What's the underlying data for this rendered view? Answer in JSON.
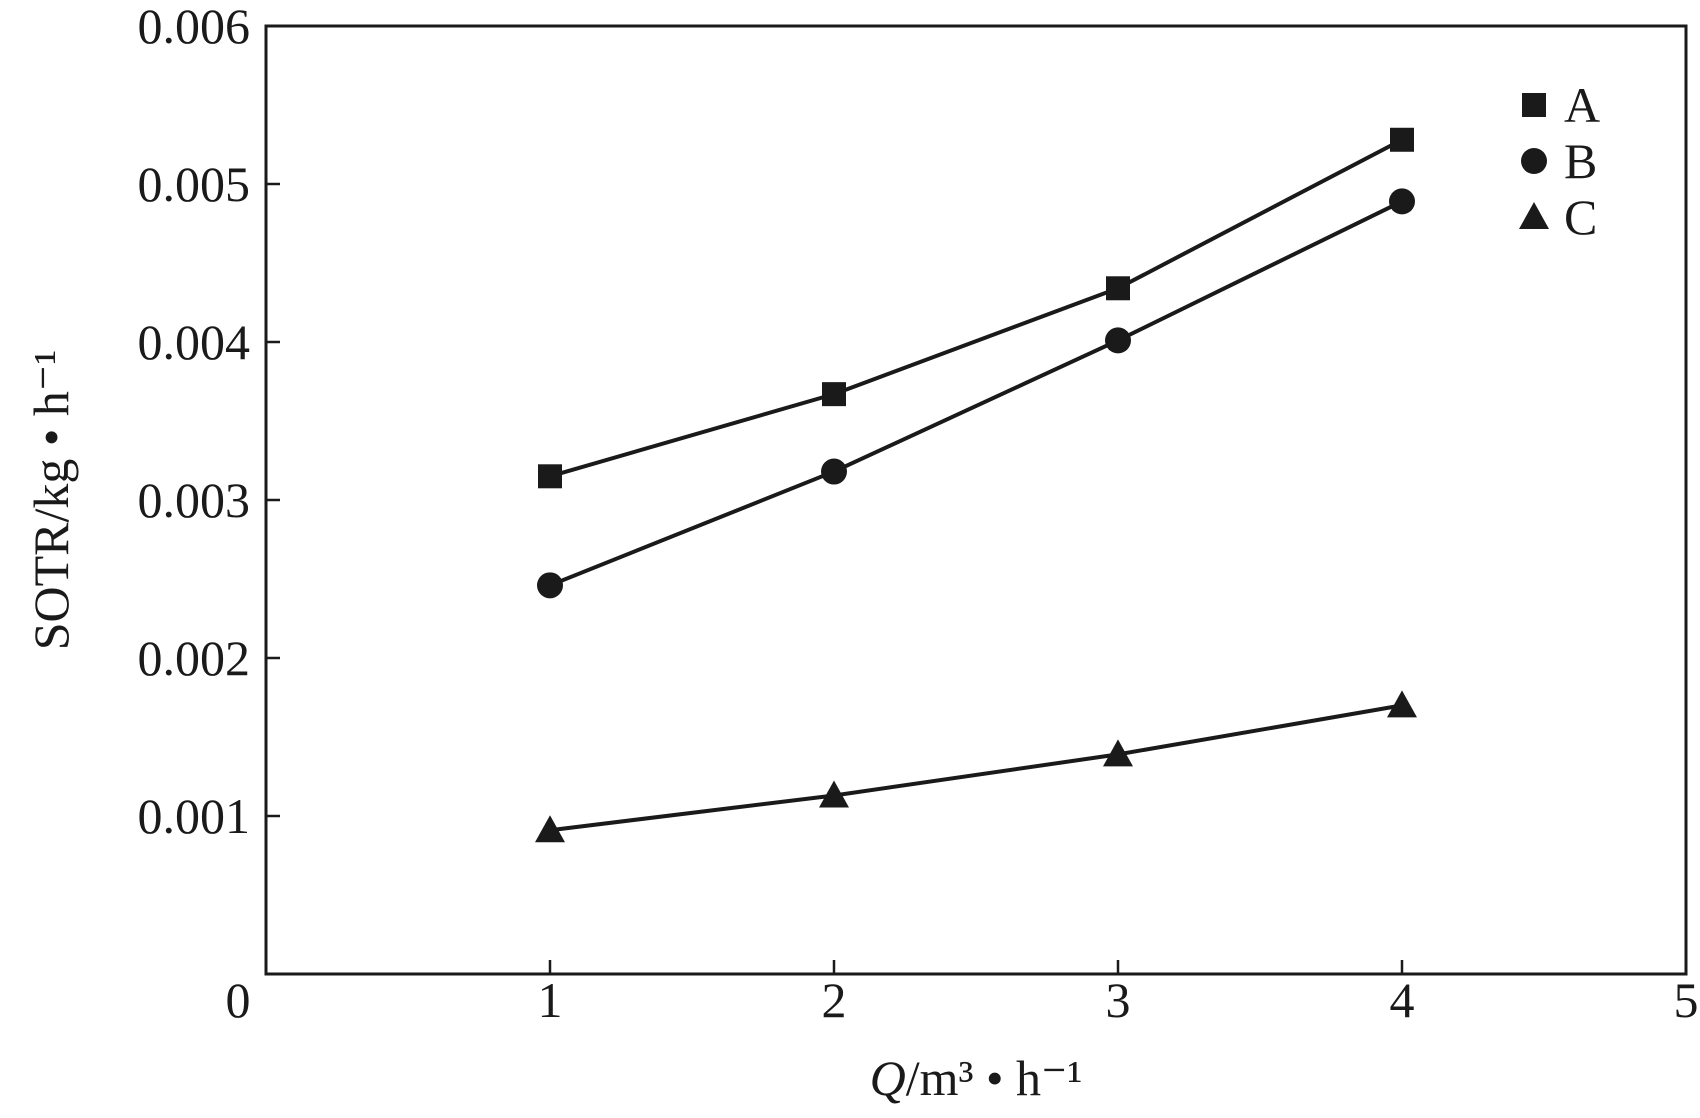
{
  "chart_data": {
    "type": "line",
    "title": "",
    "xlabel": "Q/m³ • h⁻¹",
    "xlabel_parts": {
      "var": "Q",
      "unit": "/m³ • h⁻¹"
    },
    "ylabel": "SOTR/kg • h⁻¹",
    "xlim": [
      0,
      5
    ],
    "ylim": [
      0,
      0.006
    ],
    "x_ticks": [
      0,
      1,
      2,
      3,
      4,
      5
    ],
    "x_tick_labels": [
      "0",
      "1",
      "2",
      "3",
      "4",
      "5"
    ],
    "y_ticks": [
      0.001,
      0.002,
      0.003,
      0.004,
      0.005,
      0.006
    ],
    "y_tick_labels": [
      "0.001",
      "0.002",
      "0.003",
      "0.004",
      "0.005",
      "0.006"
    ],
    "grid": false,
    "legend_position": "top-right",
    "x": [
      1,
      2,
      3,
      4
    ],
    "series": [
      {
        "name": "A",
        "marker": "square",
        "values": [
          0.00315,
          0.00367,
          0.00434,
          0.00528
        ]
      },
      {
        "name": "B",
        "marker": "circle",
        "values": [
          0.00246,
          0.00318,
          0.00401,
          0.00489
        ]
      },
      {
        "name": "C",
        "marker": "triangle",
        "values": [
          0.00091,
          0.00113,
          0.00139,
          0.0017
        ]
      }
    ],
    "colors": {
      "ink": "#1a1a1a",
      "background": "#ffffff"
    }
  }
}
